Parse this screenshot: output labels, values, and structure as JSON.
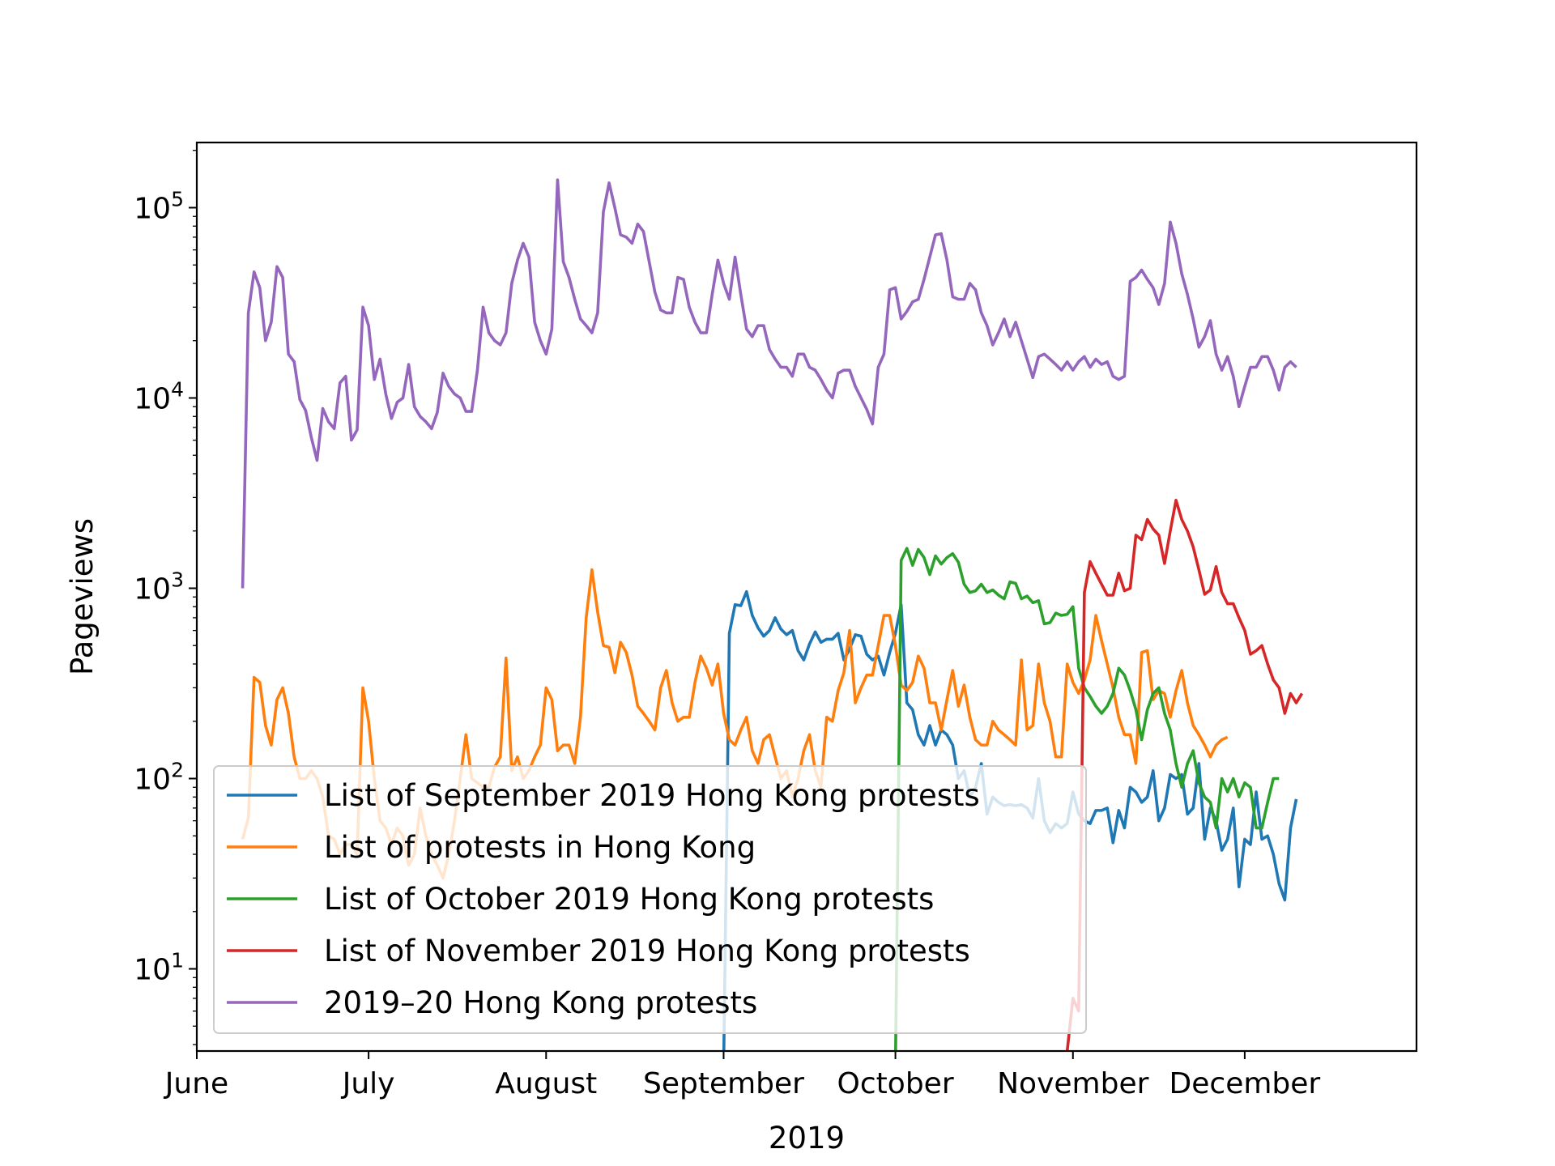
{
  "chart_data": {
    "type": "line",
    "xlabel": "2019",
    "ylabel": "Pageviews",
    "yscale": "log",
    "ylim": [
      3.7,
      220000
    ],
    "xlim": [
      "2019-06-01",
      "2019-12-31"
    ],
    "grid": false,
    "legend_position": "lower-left",
    "x_ticks": [
      {
        "date": "2019-06-01",
        "label": "June"
      },
      {
        "date": "2019-07-01",
        "label": "July"
      },
      {
        "date": "2019-08-01",
        "label": "August"
      },
      {
        "date": "2019-09-01",
        "label": "September"
      },
      {
        "date": "2019-10-01",
        "label": "October"
      },
      {
        "date": "2019-11-01",
        "label": "November"
      },
      {
        "date": "2019-12-01",
        "label": "December"
      }
    ],
    "y_ticks": [
      {
        "value": 10,
        "base": "10",
        "exp": "1"
      },
      {
        "value": 100,
        "base": "10",
        "exp": "2"
      },
      {
        "value": 1000,
        "base": "10",
        "exp": "3"
      },
      {
        "value": 10000,
        "base": "10",
        "exp": "4"
      },
      {
        "value": 100000,
        "base": "10",
        "exp": "5"
      }
    ],
    "series": [
      {
        "name": "List of September 2019 Hong Kong protests",
        "color": "#1f77b4",
        "start": "2019-09-01",
        "values": [
          3,
          580,
          820,
          810,
          960,
          720,
          620,
          560,
          600,
          700,
          610,
          570,
          600,
          470,
          420,
          510,
          590,
          520,
          540,
          540,
          580,
          420,
          480,
          570,
          560,
          450,
          420,
          440,
          350,
          460,
          580,
          820,
          250,
          230,
          170,
          150,
          190,
          150,
          180,
          170,
          150,
          100,
          110,
          80,
          90,
          120,
          65,
          80,
          75,
          72,
          73,
          72,
          73,
          70,
          62,
          100,
          60,
          52,
          58,
          55,
          58,
          85,
          65,
          60,
          58,
          68,
          68,
          70,
          46,
          68,
          55,
          90,
          85,
          75,
          80,
          110,
          60,
          70,
          105,
          100,
          105,
          65,
          70,
          120,
          48,
          70,
          60,
          42,
          48,
          70,
          27,
          48,
          45,
          85,
          48,
          50,
          40,
          28,
          23,
          55,
          78
        ]
      },
      {
        "name": "List of protests in Hong Kong",
        "color": "#ff7f0e",
        "start": "2019-06-09",
        "values": [
          48,
          62,
          340,
          320,
          190,
          150,
          260,
          300,
          220,
          130,
          100,
          100,
          110,
          100,
          80,
          50,
          48,
          40,
          45,
          45,
          40,
          300,
          200,
          100,
          60,
          55,
          45,
          55,
          50,
          35,
          40,
          70,
          50,
          40,
          35,
          30,
          40,
          60,
          100,
          170,
          100,
          95,
          90,
          90,
          115,
          130,
          430,
          110,
          130,
          100,
          110,
          130,
          150,
          300,
          260,
          140,
          150,
          150,
          120,
          210,
          700,
          1250,
          750,
          500,
          490,
          360,
          520,
          460,
          350,
          240,
          220,
          200,
          180,
          300,
          370,
          250,
          200,
          210,
          210,
          320,
          440,
          380,
          310,
          400,
          220,
          160,
          150,
          180,
          210,
          140,
          120,
          160,
          170,
          130,
          100,
          110,
          80,
          100,
          140,
          170,
          110,
          90,
          210,
          200,
          290,
          360,
          600,
          250,
          300,
          350,
          350,
          500,
          720,
          720,
          500,
          310,
          290,
          320,
          440,
          380,
          250,
          250,
          180,
          260,
          370,
          240,
          310,
          210,
          160,
          150,
          150,
          200,
          180,
          170,
          160,
          150,
          420,
          180,
          190,
          400,
          250,
          200,
          130,
          130,
          400,
          320,
          280,
          330,
          420,
          720,
          530,
          400,
          300,
          210,
          170,
          170,
          120,
          460,
          470,
          260,
          290,
          280,
          210,
          290,
          370,
          250,
          190,
          170,
          150,
          130,
          150,
          160,
          165
        ]
      },
      {
        "name": "List of October 2019 Hong Kong protests",
        "color": "#2ca02c",
        "start": "2019-10-01",
        "values": [
          3,
          1400,
          1620,
          1320,
          1600,
          1450,
          1180,
          1480,
          1340,
          1450,
          1520,
          1370,
          1050,
          950,
          970,
          1050,
          950,
          980,
          920,
          880,
          1080,
          1060,
          880,
          910,
          840,
          860,
          650,
          660,
          740,
          720,
          730,
          800,
          380,
          300,
          270,
          240,
          220,
          240,
          280,
          380,
          350,
          290,
          230,
          160,
          230,
          280,
          300,
          220,
          180,
          120,
          90,
          120,
          140,
          95,
          80,
          75,
          55,
          100,
          85,
          100,
          80,
          95,
          90,
          55,
          55,
          75,
          100,
          100
        ]
      },
      {
        "name": "List of November 2019 Hong Kong protests",
        "color": "#d62728",
        "start": "2019-10-31",
        "values": [
          3.7,
          7,
          6,
          950,
          1380,
          1200,
          1050,
          920,
          920,
          1200,
          970,
          1000,
          1900,
          1800,
          2300,
          2050,
          1900,
          1350,
          2000,
          2900,
          2300,
          2000,
          1650,
          1250,
          930,
          980,
          1300,
          950,
          830,
          830,
          700,
          600,
          450,
          470,
          500,
          400,
          330,
          300,
          220,
          280,
          250,
          280
        ]
      },
      {
        "name": "2019–20 Hong Kong protests",
        "color": "#9467bd",
        "start": "2019-06-09",
        "values": [
          1000,
          28000,
          46000,
          38000,
          20000,
          25000,
          49000,
          43000,
          17000,
          15500,
          9800,
          8600,
          6200,
          4700,
          8800,
          7500,
          6900,
          12000,
          13000,
          6000,
          6800,
          30000,
          24000,
          12500,
          16000,
          10500,
          7800,
          9500,
          10000,
          15000,
          9000,
          8000,
          7500,
          6900,
          8400,
          13500,
          11500,
          10500,
          10000,
          8500,
          8500,
          14000,
          30000,
          22000,
          20000,
          19000,
          22000,
          40000,
          53000,
          65000,
          55000,
          25000,
          20000,
          17000,
          23000,
          140000,
          52000,
          43000,
          33000,
          26000,
          24000,
          22000,
          28000,
          95000,
          135000,
          100000,
          72000,
          70000,
          65000,
          82000,
          75000,
          52000,
          36000,
          29000,
          28000,
          28000,
          43000,
          42000,
          30000,
          25000,
          22000,
          22000,
          35000,
          53000,
          40000,
          33000,
          55000,
          35000,
          23000,
          21000,
          24000,
          24000,
          18000,
          16000,
          14500,
          14500,
          13000,
          17000,
          17000,
          14500,
          14000,
          12500,
          11000,
          10000,
          13500,
          14000,
          14000,
          11500,
          10000,
          8700,
          7300,
          14500,
          17000,
          37000,
          38000,
          26000,
          28500,
          32000,
          33000,
          42000,
          55000,
          72000,
          73000,
          53000,
          34000,
          33000,
          33000,
          40000,
          37000,
          28000,
          24000,
          19000,
          22000,
          26000,
          21000,
          25000,
          20000,
          16000,
          12800,
          16500,
          17000,
          16000,
          15000,
          14000,
          15500,
          14000,
          15500,
          16500,
          14500,
          16000,
          15000,
          15500,
          13000,
          12500,
          13000,
          41000,
          43000,
          47000,
          42000,
          38000,
          31000,
          40000,
          84000,
          65000,
          45000,
          35000,
          26000,
          18500,
          21000,
          25500,
          17000,
          14000,
          16500,
          13000,
          9000,
          11500,
          14500,
          14500,
          16500,
          16500,
          14000,
          11000,
          14500,
          15500,
          14500
        ]
      }
    ]
  }
}
